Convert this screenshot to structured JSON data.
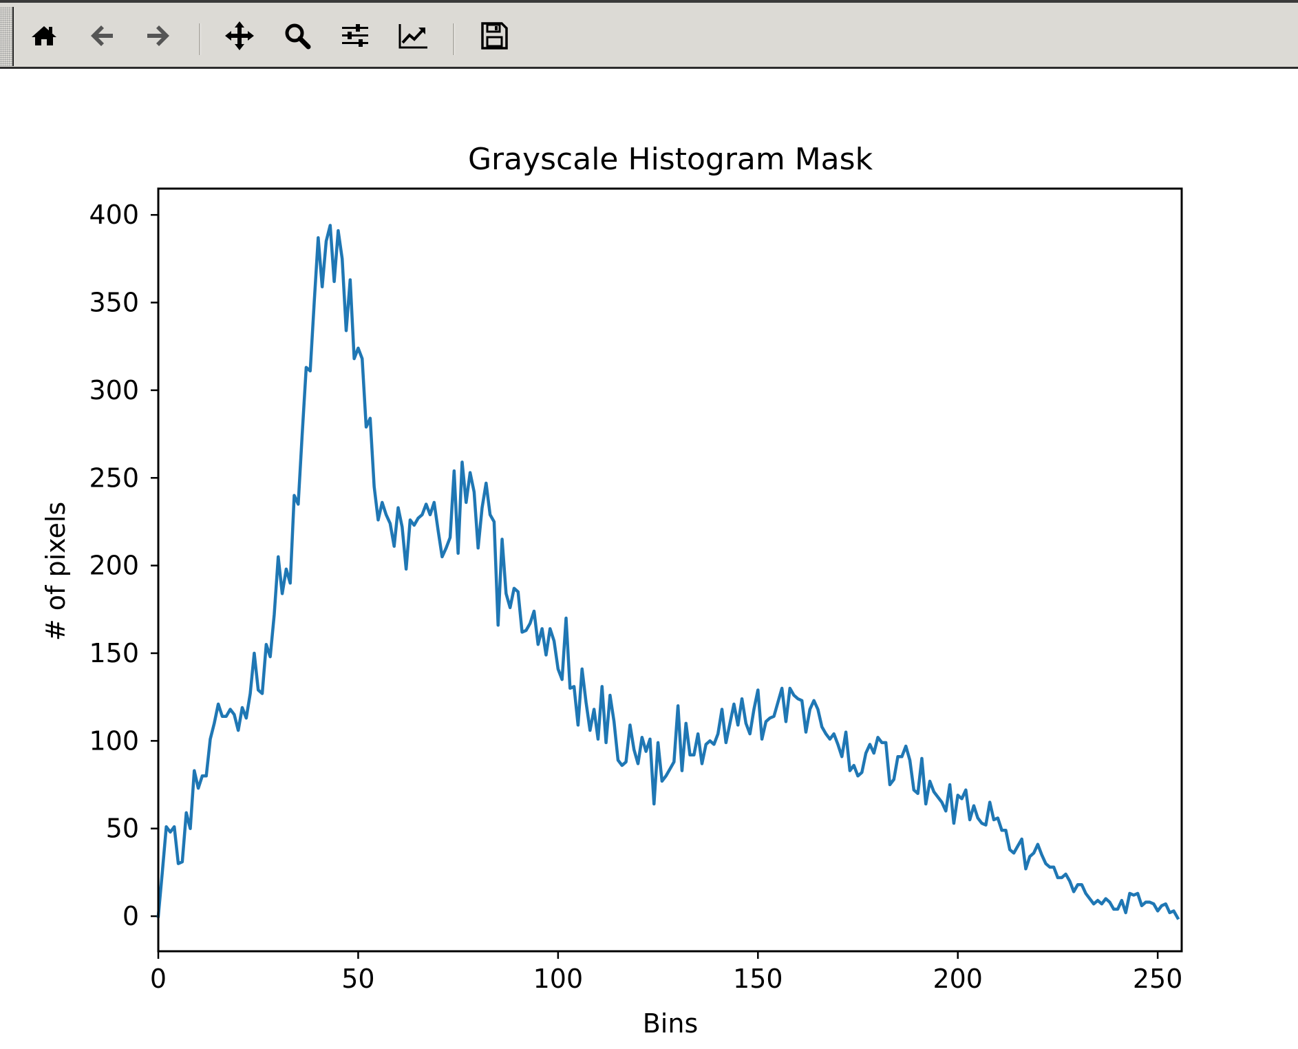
{
  "toolbar": {
    "buttons": [
      {
        "name": "home-button",
        "icon": "home-icon"
      },
      {
        "name": "back-button",
        "icon": "arrow-left-icon"
      },
      {
        "name": "forward-button",
        "icon": "arrow-right-icon"
      },
      {
        "name": "pan-button",
        "icon": "move-icon"
      },
      {
        "name": "zoom-button",
        "icon": "magnifier-icon"
      },
      {
        "name": "configure-subplots-button",
        "icon": "sliders-icon"
      },
      {
        "name": "edit-axes-button",
        "icon": "line-chart-icon"
      },
      {
        "name": "save-button",
        "icon": "floppy-disk-icon"
      }
    ]
  },
  "colors": {
    "line": "#1f77b4",
    "toolbar_bg": "#dcdad5"
  },
  "chart_data": {
    "type": "line",
    "title": "Grayscale Histogram Mask",
    "xlabel": "Bins",
    "ylabel": "# of pixels",
    "xlim": [
      0,
      256
    ],
    "ylim": [
      -20,
      415
    ],
    "xticks": [
      0,
      50,
      100,
      150,
      200,
      250
    ],
    "yticks": [
      0,
      50,
      100,
      150,
      200,
      250,
      300,
      350,
      400
    ],
    "grid": false,
    "series": [
      {
        "values": [
          0,
          25,
          51,
          48,
          51,
          30,
          31,
          59,
          50,
          83,
          73,
          80,
          80,
          101,
          110,
          121,
          114,
          114,
          118,
          115,
          106,
          119,
          113,
          127,
          150,
          129,
          127,
          155,
          148,
          172,
          205,
          184,
          198,
          190,
          240,
          235,
          275,
          313,
          311,
          350,
          387,
          359,
          385,
          394,
          362,
          391,
          375,
          334,
          363,
          318,
          324,
          318,
          279,
          284,
          245,
          226,
          236,
          229,
          224,
          211,
          233,
          222,
          198,
          226,
          223,
          227,
          229,
          235,
          229,
          236,
          220,
          205,
          210,
          216,
          254,
          207,
          259,
          236,
          253,
          242,
          210,
          233,
          247,
          229,
          225,
          166,
          215,
          184,
          176,
          187,
          185,
          162,
          163,
          167,
          174,
          155,
          164,
          149,
          164,
          157,
          141,
          135,
          170,
          130,
          131,
          109,
          141,
          122,
          106,
          118,
          101,
          131,
          99,
          126,
          111,
          89,
          86,
          88,
          109,
          95,
          87,
          102,
          94,
          101,
          64,
          99,
          77,
          80,
          84,
          88,
          120,
          83,
          110,
          92,
          92,
          104,
          87,
          98,
          100,
          98,
          104,
          118,
          99,
          110,
          121,
          109,
          124,
          110,
          104,
          118,
          129,
          101,
          111,
          113,
          114,
          122,
          130,
          111,
          130,
          126,
          124,
          123,
          105,
          118,
          123,
          118,
          108,
          104,
          101,
          104,
          98,
          91,
          105,
          83,
          86,
          80,
          82,
          93,
          98,
          93,
          102,
          99,
          99,
          75,
          78,
          91,
          91,
          97,
          89,
          72,
          70,
          90,
          64,
          77,
          71,
          68,
          65,
          60,
          75,
          53,
          69,
          67,
          72,
          55,
          63,
          56,
          53,
          52,
          65,
          55,
          56,
          49,
          49,
          38,
          36,
          40,
          44,
          27,
          34,
          36,
          41,
          35,
          30,
          28,
          28,
          22,
          22,
          24,
          20,
          14,
          18,
          18,
          13,
          10,
          7,
          9,
          7,
          10,
          8,
          4,
          4,
          9,
          2,
          13,
          12,
          13,
          6,
          8,
          8,
          7,
          3,
          6,
          7,
          2,
          3,
          -1
        ]
      }
    ]
  }
}
